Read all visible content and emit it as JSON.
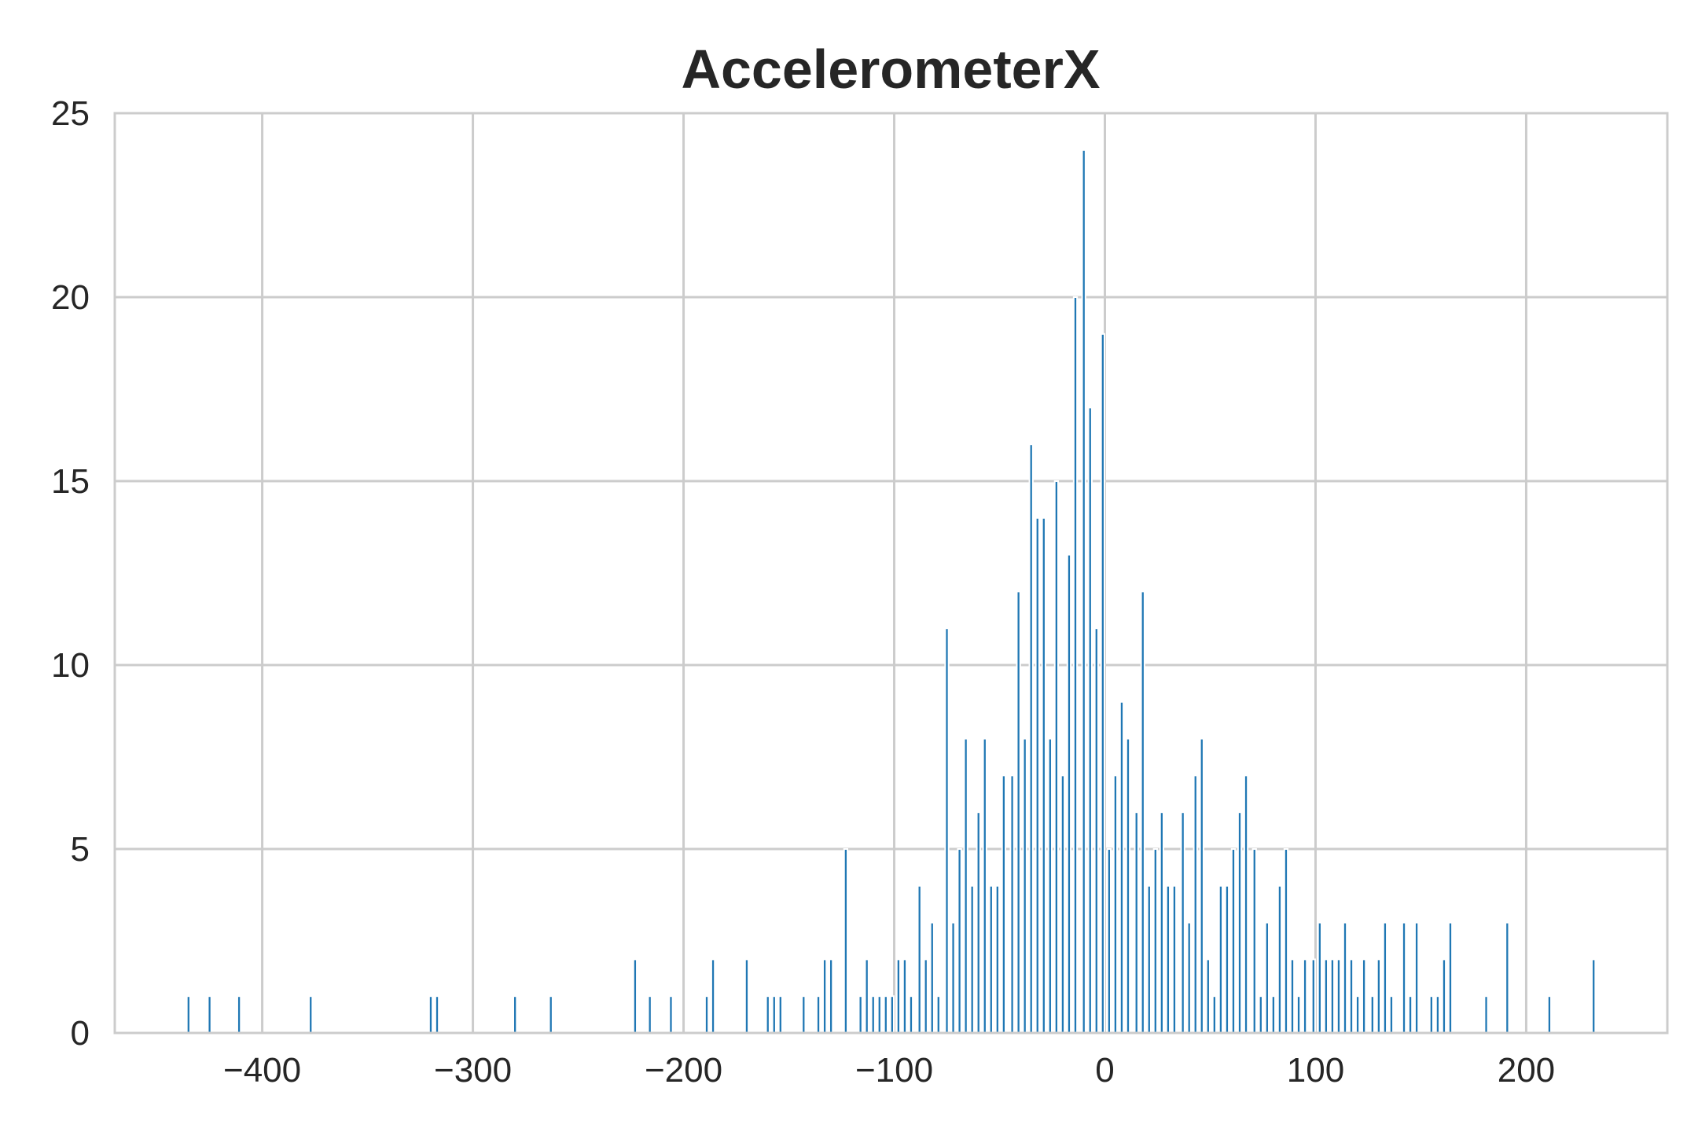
{
  "chart_data": {
    "type": "bar",
    "title": "AccelerometerX",
    "xlabel": "",
    "ylabel": "",
    "xlim": [
      -470,
      267
    ],
    "ylim": [
      0,
      25
    ],
    "grid": true,
    "x_ticks": [
      -400,
      -300,
      -200,
      -100,
      0,
      100,
      200
    ],
    "x_tick_labels": [
      "−400",
      "−300",
      "−200",
      "−100",
      "0",
      "100",
      "200"
    ],
    "y_ticks": [
      0,
      5,
      10,
      15,
      20,
      25
    ],
    "y_tick_labels": [
      "0",
      "5",
      "10",
      "15",
      "20",
      "25"
    ],
    "bar_width": 1.6,
    "color": "#1f77b4",
    "x": [
      -435,
      -425,
      -411,
      -377,
      -320,
      -317,
      -280,
      -263,
      -223,
      -216,
      -206,
      -189,
      -186,
      -170,
      -160,
      -157,
      -154,
      -143,
      -136,
      -133,
      -130,
      -123,
      -116,
      -113,
      -110,
      -107,
      -104,
      -101,
      -98,
      -95,
      -92,
      -88,
      -85,
      -82,
      -79,
      -75,
      -72,
      -69,
      -66,
      -63,
      -60,
      -57,
      -54,
      -51,
      -48,
      -44,
      -41,
      -38,
      -35,
      -32,
      -29,
      -26,
      -23,
      -20,
      -17,
      -14,
      -10,
      -7,
      -4,
      -1,
      2,
      5,
      8,
      11,
      15,
      18,
      21,
      24,
      27,
      30,
      33,
      37,
      40,
      43,
      46,
      49,
      52,
      55,
      58,
      61,
      64,
      67,
      71,
      74,
      77,
      80,
      83,
      86,
      89,
      92,
      95,
      99,
      102,
      105,
      108,
      111,
      114,
      117,
      120,
      123,
      127,
      130,
      133,
      136,
      142,
      145,
      148,
      155,
      158,
      161,
      164,
      181,
      191,
      211,
      232
    ],
    "values": [
      1,
      1,
      1,
      1,
      1,
      1,
      1,
      1,
      2,
      1,
      1,
      1,
      2,
      2,
      1,
      1,
      1,
      1,
      1,
      2,
      2,
      5,
      1,
      2,
      1,
      1,
      1,
      1,
      2,
      2,
      1,
      4,
      2,
      3,
      1,
      11,
      3,
      5,
      8,
      4,
      6,
      8,
      4,
      4,
      7,
      7,
      12,
      8,
      16,
      14,
      14,
      8,
      15,
      7,
      13,
      20,
      24,
      17,
      11,
      19,
      5,
      7,
      9,
      8,
      6,
      12,
      4,
      5,
      6,
      4,
      4,
      6,
      3,
      7,
      8,
      2,
      1,
      4,
      4,
      5,
      6,
      7,
      5,
      1,
      3,
      1,
      4,
      5,
      2,
      1,
      2,
      2,
      3,
      2,
      2,
      2,
      3,
      2,
      1,
      2,
      1,
      2,
      3,
      1,
      3,
      1,
      3,
      1,
      1,
      2,
      3,
      1,
      3,
      1,
      2
    ]
  }
}
